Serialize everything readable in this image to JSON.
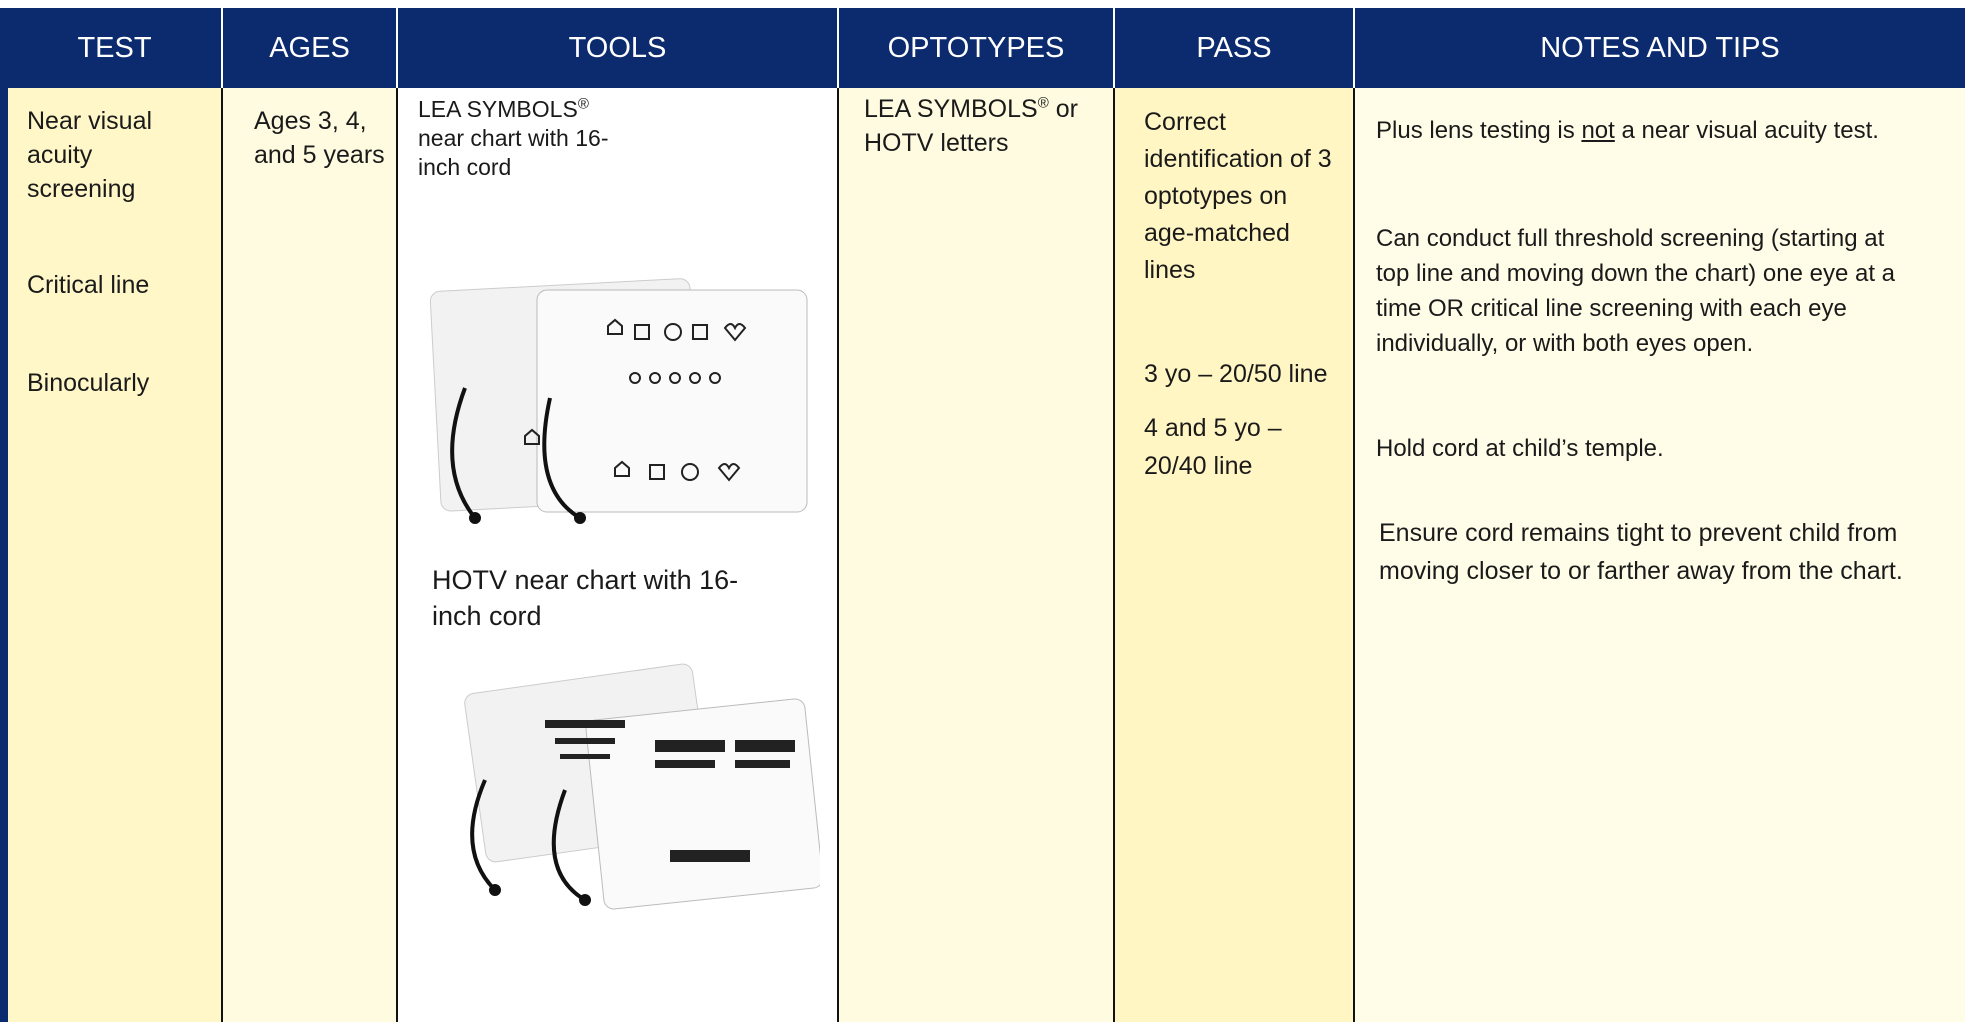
{
  "table": {
    "headers": [
      "TEST",
      "AGES",
      "TOOLS",
      "OPTOTYPES",
      "PASS",
      "NOTES AND TIPS"
    ],
    "row": {
      "test": [
        "Near visual acuity screening",
        "Critical line",
        "Binocularly"
      ],
      "ages": "Ages 3, 4, and 5 years",
      "tools": [
        {
          "name": "LEA SYMBOLS",
          "mark": "®",
          "text": "near chart with 16-inch cord"
        },
        {
          "text": "HOTV near chart with 16-inch cord"
        }
      ],
      "optotypes": {
        "name": "LEA SYMBOLS",
        "mark": "®",
        "text": "or HOTV letters"
      },
      "pass": [
        "Correct identification of 3 optotypes on age-matched lines",
        "3 yo – 20/50 line",
        "4 and 5 yo – 20/40 line"
      ],
      "notes": [
        [
          "Plus lens testing is ",
          "not",
          " a near visual acuity test."
        ],
        "Can conduct full threshold screening (starting at top line and moving down the chart) one eye at a time OR critical line screening with each eye individually, or with both eyes open.",
        "Hold cord at child’s temple.",
        "Ensure cord remains tight to prevent child from moving closer to or farther away from the chart."
      ]
    }
  }
}
